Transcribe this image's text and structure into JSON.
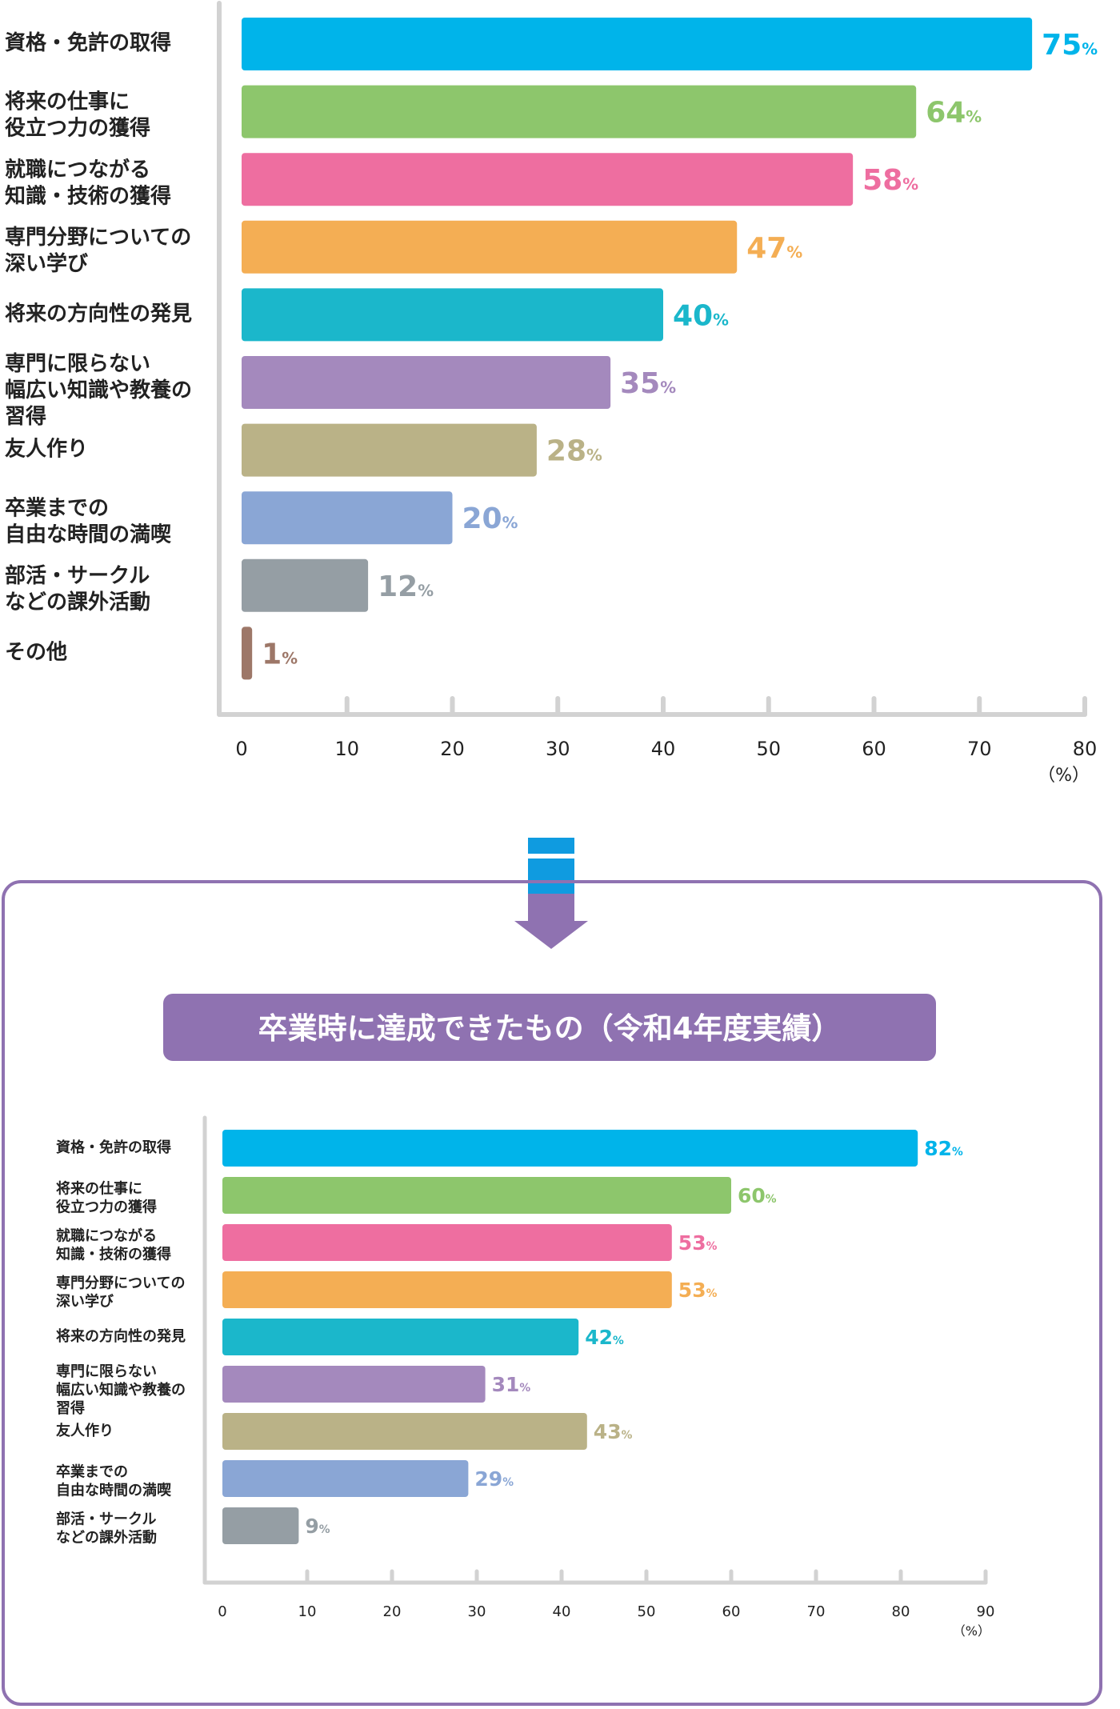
{
  "chart_data": [
    {
      "type": "bar",
      "orientation": "horizontal",
      "title": "",
      "categories": [
        "資格・免許の取得",
        "将来の仕事に\n役立つ力の獲得",
        "就職につながる\n知識・技術の獲得",
        "専門分野についての\n深い学び",
        "将来の方向性の発見",
        "専門に限らない\n幅広い知識や教養の\n習得",
        "友人作り",
        "卒業までの\n自由な時間の満喫",
        "部活・サークル\nなどの課外活動",
        "その他"
      ],
      "values": [
        75,
        64,
        58,
        47,
        40,
        35,
        28,
        20,
        12,
        1
      ],
      "colors": [
        "#00b4ea",
        "#8dc66c",
        "#ee6ea0",
        "#f4ae54",
        "#1bb7cb",
        "#a489bd",
        "#bab287",
        "#8aa6d5",
        "#959ea4",
        "#9d7768"
      ],
      "value_suffix": "%",
      "xlim": [
        0,
        80
      ],
      "xticks": [
        0,
        10,
        20,
        30,
        40,
        50,
        60,
        70,
        80
      ],
      "unit_label": "（%）",
      "grid": false
    },
    {
      "type": "bar",
      "orientation": "horizontal",
      "title": "卒業時に達成できたもの（令和4年度実績）",
      "categories": [
        "資格・免許の取得",
        "将来の仕事に\n役立つ力の獲得",
        "就職につながる\n知識・技術の獲得",
        "専門分野についての\n深い学び",
        "将来の方向性の発見",
        "専門に限らない\n幅広い知識や教養の\n習得",
        "友人作り",
        "卒業までの\n自由な時間の満喫",
        "部活・サークル\nなどの課外活動"
      ],
      "values": [
        82,
        60,
        53,
        53,
        42,
        31,
        43,
        29,
        9
      ],
      "colors": [
        "#00b4ea",
        "#8dc66c",
        "#ee6ea0",
        "#f4ae54",
        "#1bb7cb",
        "#a489bd",
        "#bab287",
        "#8aa6d5",
        "#959ea4"
      ],
      "value_suffix": "%",
      "xlim": [
        0,
        90
      ],
      "xticks": [
        0,
        10,
        20,
        30,
        40,
        50,
        60,
        70,
        80,
        90
      ],
      "unit_label": "（%）",
      "grid": false
    }
  ],
  "decor": {
    "frame_color": "#8f72b1",
    "title_bg": "#8f72b1",
    "axis_color": "#d2d2d2",
    "arrow_color": "#8f72b1",
    "arrow_band_color": "#0f9be0"
  }
}
